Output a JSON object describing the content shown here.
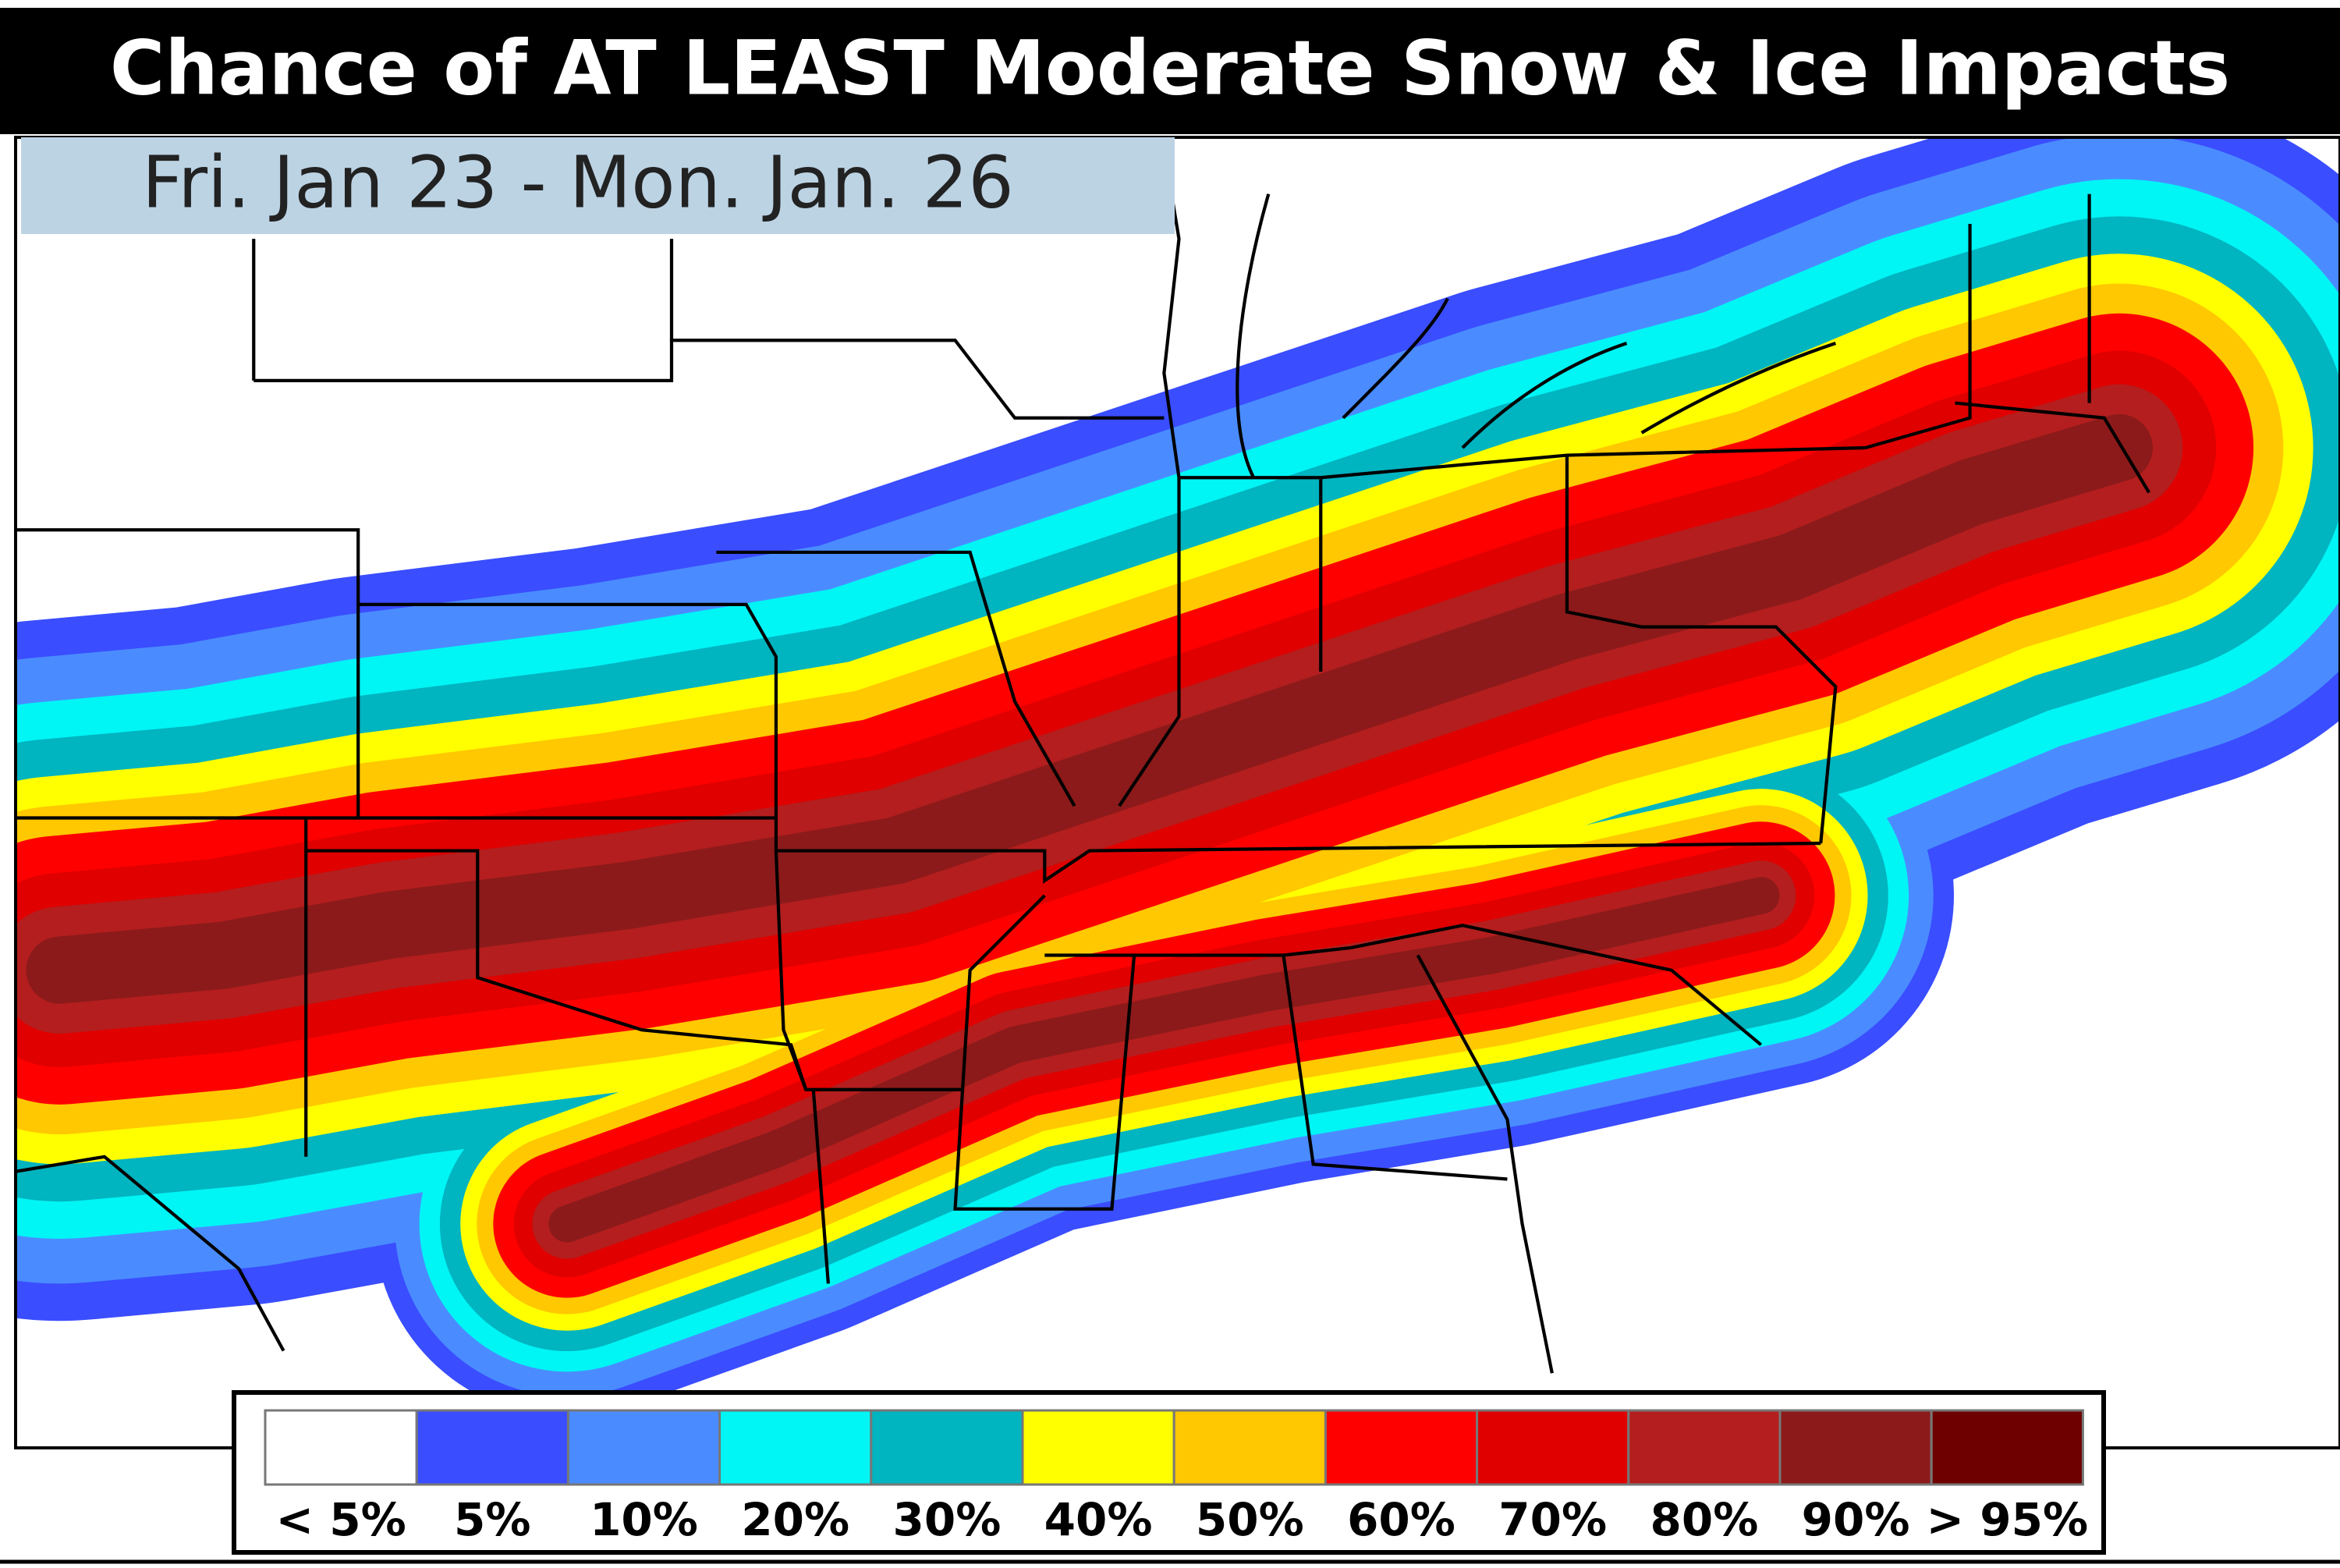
{
  "title": "Chance of AT LEAST Moderate Snow & Ice Impacts",
  "subtitle": "Fri. Jan 23 - Mon. Jan. 26",
  "legend": {
    "items": [
      {
        "label": "< 5%",
        "color": "#ffffff"
      },
      {
        "label": "5%",
        "color": "#3a4dff"
      },
      {
        "label": "10%",
        "color": "#4a8cff"
      },
      {
        "label": "20%",
        "color": "#00f5f5"
      },
      {
        "label": "30%",
        "color": "#00b4c0"
      },
      {
        "label": "40%",
        "color": "#ffff00"
      },
      {
        "label": "50%",
        "color": "#ffc800"
      },
      {
        "label": "60%",
        "color": "#ff0000"
      },
      {
        "label": "70%",
        "color": "#e00000"
      },
      {
        "label": "80%",
        "color": "#b41e1e"
      },
      {
        "label": "90%",
        "color": "#8c1a1a"
      },
      {
        "label": "> 95%",
        "color": "#6e0000"
      }
    ]
  }
}
